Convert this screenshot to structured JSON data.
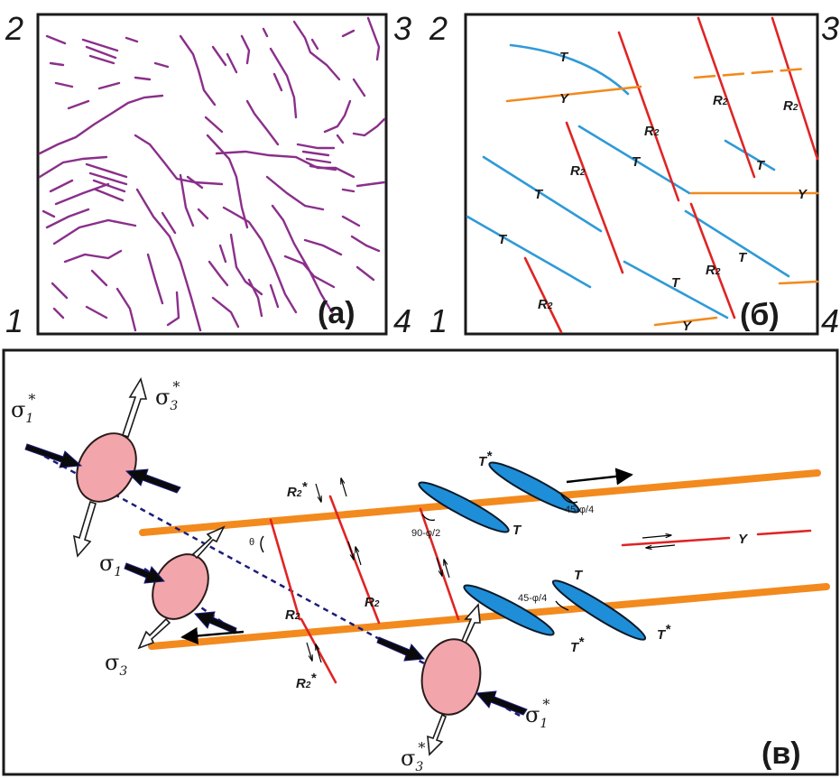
{
  "corners": {
    "top_left": "2",
    "top_right": "3",
    "bottom_left": "1",
    "bottom_right": "4"
  },
  "panels": {
    "a": "(a)",
    "b": "(б)",
    "c": "(в)"
  },
  "labels": {
    "T": "T",
    "Y": "Y",
    "R": "R",
    "two": "2",
    "star": "*"
  },
  "angles": {
    "theta": "θ",
    "a90": "90-φ/2",
    "a45": "45-φ/4"
  },
  "sigma": {
    "symbol": "σ",
    "sub1": "1",
    "sub3": "3",
    "star": "*"
  },
  "colors": {
    "fracture": "#8a2f8a",
    "T": "#2f9ad8",
    "R2": "#e02424",
    "Y": "#f28a1e",
    "ellipse": "#f2a6ab",
    "lens": "#1e8ed8",
    "dash": "#1c1c7a"
  }
}
